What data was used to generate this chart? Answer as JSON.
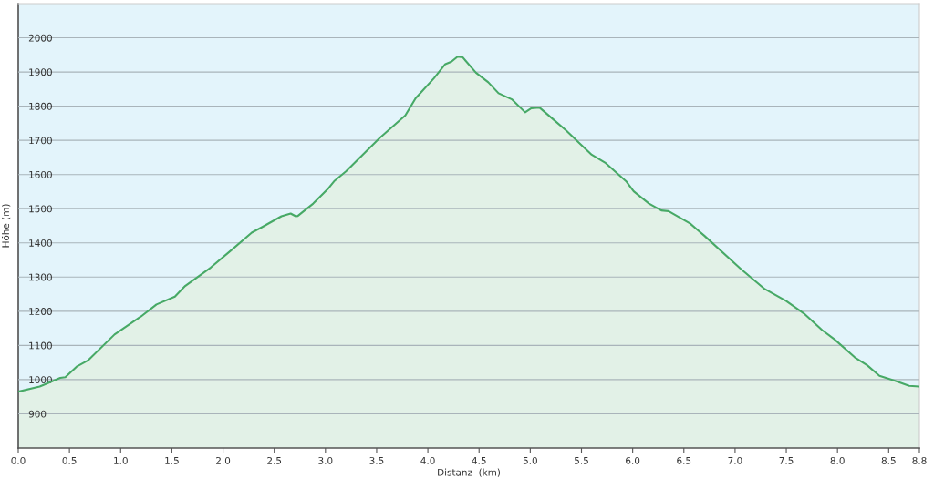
{
  "chart_data": {
    "type": "area",
    "xlabel": "Distanz  (km)",
    "ylabel": "Höhe (m)",
    "x": [
      0,
      0.21,
      0.29,
      0.41,
      0.46,
      0.57,
      0.68,
      0.94,
      1.2,
      1.35,
      1.53,
      1.63,
      1.88,
      2.09,
      2.28,
      2.38,
      2.57,
      2.66,
      2.71,
      2.73,
      2.88,
      3.03,
      3.09,
      3.2,
      3.53,
      3.78,
      3.88,
      4.06,
      4.17,
      4.23,
      4.29,
      4.34,
      4.47,
      4.59,
      4.69,
      4.82,
      4.95,
      5.01,
      5.09,
      5.23,
      5.35,
      5.48,
      5.6,
      5.73,
      5.94,
      6.01,
      6.16,
      6.28,
      6.35,
      6.56,
      6.7,
      7.06,
      7.29,
      7.5,
      7.67,
      7.85,
      7.97,
      8.17,
      8.29,
      8.41,
      8.55,
      8.7,
      8.8
    ],
    "series": [
      {
        "color": "#47a966",
        "values": [
          965,
          980,
          990,
          1005,
          1007,
          1038,
          1056,
          1132,
          1185,
          1220,
          1243,
          1274,
          1328,
          1381,
          1430,
          1446,
          1478,
          1486,
          1478,
          1479,
          1515,
          1560,
          1582,
          1609,
          1707,
          1773,
          1823,
          1882,
          1923,
          1930,
          1945,
          1943,
          1898,
          1870,
          1838,
          1820,
          1782,
          1794,
          1796,
          1760,
          1729,
          1692,
          1658,
          1635,
          1579,
          1551,
          1515,
          1495,
          1493,
          1457,
          1421,
          1323,
          1265,
          1230,
          1194,
          1145,
          1118,
          1065,
          1042,
          1011,
          998,
          982,
          980
        ]
      }
    ],
    "xlim": [
      0,
      8.8
    ],
    "ylim": [
      800,
      2100
    ],
    "xticks": [
      {
        "value": 0,
        "label": "0.0"
      },
      0.5,
      {
        "value": 1,
        "label": "1.0"
      },
      1.5,
      {
        "value": 2,
        "label": "2.0"
      },
      2.5,
      {
        "value": 3,
        "label": "3.0"
      },
      3.5,
      {
        "value": 4,
        "label": "4.0"
      },
      4.5,
      {
        "value": 5,
        "label": "5.0"
      },
      5.5,
      {
        "value": 6,
        "label": "6.0"
      },
      6.5,
      {
        "value": 7,
        "label": "7.0"
      },
      7.5,
      {
        "value": 8,
        "label": "8.0"
      },
      8.5,
      8.8
    ],
    "yticks": [
      900,
      1000,
      1100,
      1200,
      1300,
      1400,
      1500,
      1600,
      1700,
      1800,
      1900,
      2000
    ],
    "grid": "y"
  }
}
